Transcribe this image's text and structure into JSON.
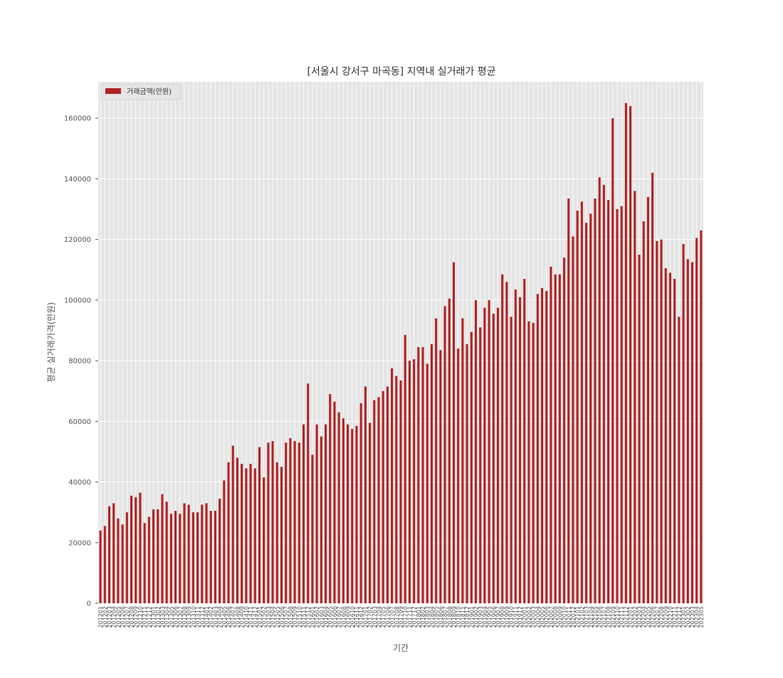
{
  "chart_data": {
    "type": "bar",
    "title": "[서울시 강서구 마곡동] 지역내 실거래가 평균",
    "xlabel": "기간",
    "ylabel": "평균 실거래가격(만원)",
    "ylim": [
      0,
      172000
    ],
    "yticks": [
      0,
      20000,
      40000,
      60000,
      80000,
      100000,
      120000,
      140000,
      160000
    ],
    "grid": true,
    "legend_position": "top-left",
    "colors": {
      "bar": "#b22222",
      "plot_bg": "#e5e5e5",
      "grid": "#ffffff"
    },
    "series": [
      {
        "name": "거래금액(만원)",
        "values": [
          24000,
          25500,
          32000,
          33000,
          28000,
          26000,
          30000,
          35500,
          35000,
          36500,
          26500,
          28500,
          31000,
          31000,
          36000,
          33500,
          29500,
          30500,
          29500,
          33000,
          32500,
          30000,
          30000,
          32500,
          33000,
          30500,
          30500,
          34500,
          40500,
          46500,
          52000,
          48000,
          46000,
          44500,
          46000,
          44500,
          51500,
          41500,
          53000,
          53500,
          46500,
          45000,
          53000,
          54500,
          53500,
          53000,
          59000,
          72500,
          49000,
          59000,
          55000,
          59000,
          69000,
          66500,
          63000,
          61000,
          59000,
          57500,
          58500,
          66000,
          71500,
          59500,
          67000,
          68000,
          70000,
          71500,
          77500,
          75000,
          73500,
          88500,
          80000,
          80500,
          84500,
          84500,
          79000,
          85500,
          94000,
          83500,
          98000,
          100500,
          112500,
          84000,
          94000,
          85500,
          89500,
          100000,
          91000,
          97500,
          100000,
          95500,
          97500,
          108500,
          106000,
          94500,
          103500,
          101000,
          107000,
          93000,
          92500,
          102000,
          104000,
          103000,
          111000,
          108500,
          108500,
          114000,
          133500,
          121000,
          129500,
          132500,
          125500,
          128500,
          133500,
          140500,
          138000,
          133000,
          160000,
          130000,
          131000,
          165000,
          164000,
          136000,
          115000,
          126000,
          134000,
          142000,
          119500,
          120000,
          110500,
          109000,
          107000,
          94500,
          118500,
          113500,
          112500,
          120500,
          123000
        ]
      }
    ],
    "categories": [
      "201201",
      "201202",
      "201203",
      "201204",
      "201205",
      "201206",
      "201207",
      "201208",
      "201209",
      "201210",
      "201211",
      "201212",
      "201301",
      "201302",
      "201303",
      "201304",
      "201305",
      "201306",
      "201307",
      "201308",
      "201309",
      "201310",
      "201311",
      "201312",
      "201401",
      "201402",
      "201403",
      "201404",
      "201405",
      "201406",
      "201407",
      "201408",
      "201409",
      "201410",
      "201411",
      "201412",
      "201501",
      "201502",
      "201503",
      "201504",
      "201505",
      "201506",
      "201507",
      "201508",
      "201509",
      "201510",
      "201511",
      "201512",
      "201601",
      "201602",
      "201603",
      "201604",
      "201605",
      "201606",
      "201607",
      "201608",
      "201609",
      "201610",
      "201611",
      "201612",
      "201701",
      "201702",
      "201703",
      "201704",
      "201705",
      "201706",
      "201707",
      "201708",
      "201709",
      "201710",
      "201711",
      "201712",
      "201801",
      "201802",
      "201803",
      "201804",
      "201805",
      "201806",
      "201807",
      "201808",
      "201809",
      "201810",
      "201811",
      "201812",
      "201901",
      "201902",
      "201903",
      "201904",
      "201905",
      "201906",
      "201907",
      "201908",
      "201909",
      "201910",
      "201911",
      "201912",
      "202001",
      "202002",
      "202003",
      "202004",
      "202005",
      "202006",
      "202007",
      "202008",
      "202009",
      "202010",
      "202011",
      "202012",
      "202101",
      "202102",
      "202103",
      "202104",
      "202105",
      "202106",
      "202107",
      "202108",
      "202109",
      "202110",
      "202111",
      "202112",
      "202201",
      "202202",
      "202203",
      "202204",
      "202205",
      "202206",
      "202207",
      "202208",
      "202209",
      "202210",
      "202211",
      "202212",
      "202301",
      "202302",
      "202303",
      "202304",
      "202305"
    ]
  }
}
